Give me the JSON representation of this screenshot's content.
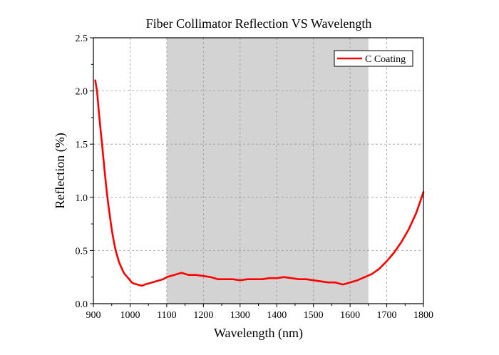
{
  "chart_data": {
    "type": "line",
    "title": "Fiber Collimator Reflection VS Wavelength",
    "xlabel": "Wavelength (nm)",
    "ylabel": "Reflection (%)",
    "xlim": [
      900,
      1800
    ],
    "ylim": [
      0.0,
      2.5
    ],
    "xticks": [
      900,
      1000,
      1100,
      1200,
      1300,
      1400,
      1500,
      1600,
      1700,
      1800
    ],
    "yticks": [
      0.0,
      0.5,
      1.0,
      1.5,
      2.0,
      2.5
    ],
    "xtick_labels": [
      "900",
      "1000",
      "1100",
      "1200",
      "1300",
      "1400",
      "1500",
      "1600",
      "1700",
      "1800"
    ],
    "ytick_labels": [
      "0.0",
      "0.5",
      "1.0",
      "1.5",
      "2.0",
      "2.5"
    ],
    "grid": true,
    "highlight_band": {
      "x_start": 1100,
      "x_end": 1650,
      "color": "#d3d3d3"
    },
    "legend_position": "top-right",
    "series": [
      {
        "name": "C Coating",
        "color": "#ff0000",
        "x": [
          905,
          910,
          915,
          920,
          925,
          930,
          935,
          940,
          945,
          950,
          955,
          960,
          965,
          970,
          975,
          980,
          985,
          990,
          995,
          1000,
          1005,
          1010,
          1020,
          1030,
          1035,
          1040,
          1050,
          1060,
          1070,
          1080,
          1090,
          1100,
          1110,
          1120,
          1130,
          1140,
          1150,
          1160,
          1180,
          1200,
          1220,
          1240,
          1260,
          1280,
          1300,
          1320,
          1340,
          1360,
          1380,
          1400,
          1420,
          1440,
          1460,
          1480,
          1500,
          1520,
          1540,
          1560,
          1570,
          1580,
          1590,
          1600,
          1620,
          1640,
          1660,
          1680,
          1700,
          1720,
          1740,
          1760,
          1780,
          1790,
          1800
        ],
        "y": [
          2.1,
          2.0,
          1.8,
          1.62,
          1.45,
          1.27,
          1.1,
          0.95,
          0.82,
          0.7,
          0.6,
          0.51,
          0.45,
          0.39,
          0.35,
          0.31,
          0.28,
          0.26,
          0.24,
          0.22,
          0.2,
          0.19,
          0.18,
          0.17,
          0.17,
          0.18,
          0.19,
          0.2,
          0.21,
          0.22,
          0.23,
          0.25,
          0.26,
          0.27,
          0.28,
          0.29,
          0.28,
          0.27,
          0.27,
          0.26,
          0.25,
          0.23,
          0.23,
          0.23,
          0.22,
          0.23,
          0.23,
          0.23,
          0.24,
          0.24,
          0.25,
          0.24,
          0.23,
          0.23,
          0.22,
          0.21,
          0.2,
          0.2,
          0.19,
          0.18,
          0.19,
          0.2,
          0.22,
          0.25,
          0.28,
          0.33,
          0.4,
          0.48,
          0.58,
          0.7,
          0.85,
          0.95,
          1.05
        ]
      }
    ]
  }
}
